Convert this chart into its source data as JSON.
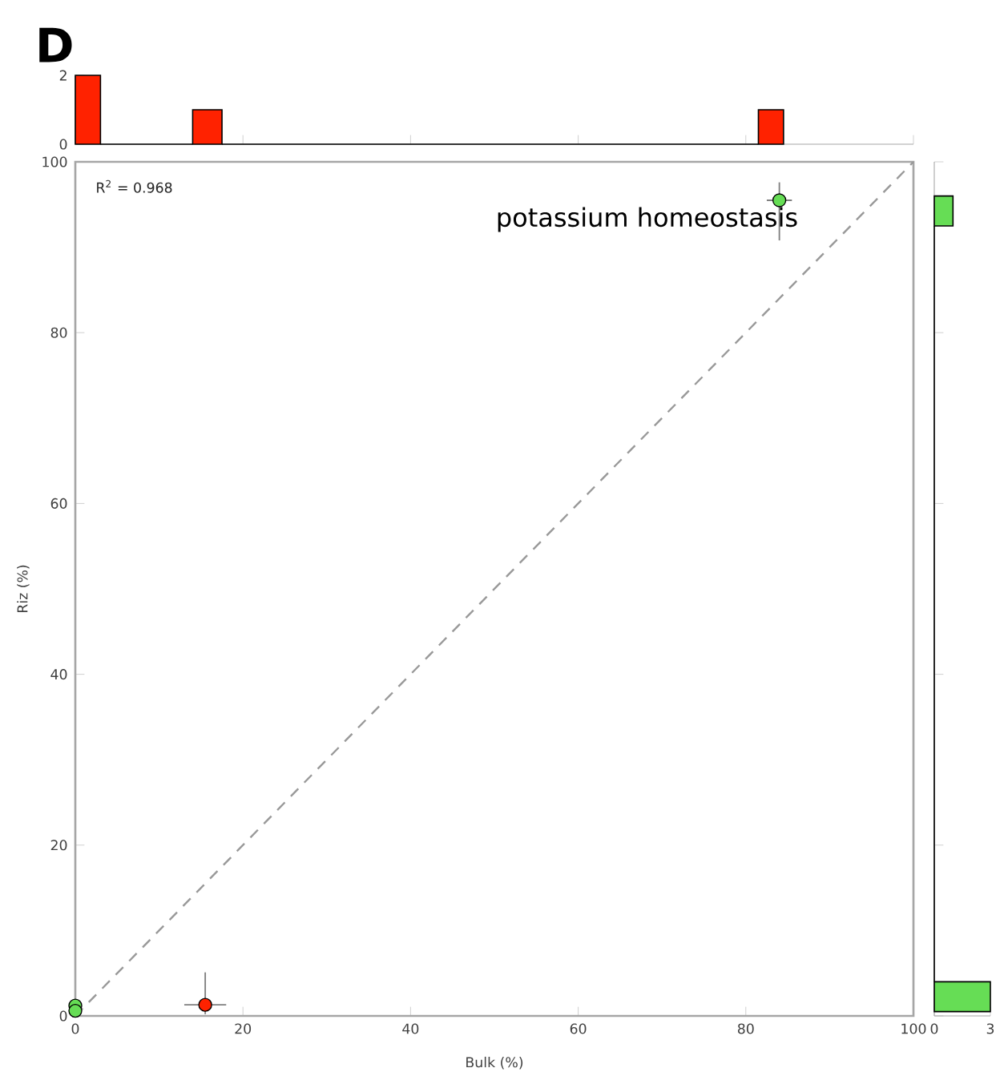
{
  "chart_data": [
    {
      "type": "histogram",
      "title": "D",
      "bins": [
        0,
        3,
        14,
        17.5,
        81.5,
        84.5
      ],
      "values": [
        2,
        0,
        1,
        0,
        1
      ],
      "color": "#ff2200",
      "xlim": [
        0,
        100
      ],
      "ylim": [
        0,
        2
      ],
      "xticks": [
        0,
        20,
        40,
        60,
        80,
        100
      ],
      "yticks": [
        0,
        2
      ],
      "tick_labels": "y"
    },
    {
      "type": "scatter",
      "xlabel": "Bulk (%)",
      "ylabel": "Riz (%)",
      "xlim": [
        0,
        100
      ],
      "ylim": [
        0,
        100
      ],
      "xticks": [
        0,
        20,
        40,
        60,
        80,
        100
      ],
      "yticks": [
        0,
        20,
        40,
        60,
        80,
        100
      ],
      "series": [
        {
          "type": "line",
          "color": "#999999",
          "line_style": "dashed",
          "marker": "none",
          "x": [
            0,
            100
          ],
          "values": [
            0,
            100
          ]
        },
        {
          "color": "#66dd55",
          "marker": "circle",
          "x": [
            0,
            0,
            84
          ],
          "values": [
            1.2,
            0.6,
            95.5
          ],
          "errors": [
            null,
            null,
            [
              90.8,
              97.6
            ]
          ],
          "xerrors": [
            null,
            null,
            [
              82.5,
              85.5
            ]
          ]
        },
        {
          "color": "#ff2200",
          "marker": "circle",
          "x": [
            15.5
          ],
          "values": [
            1.3
          ],
          "errors": [
            [
              0.2,
              5.1
            ]
          ],
          "xerrors": [
            [
              13,
              18
            ]
          ]
        }
      ],
      "annotations": [
        "R$^{2}$ = 0.968",
        {
          "text": "potassium homeostasis",
          "x": 84,
          "y": 95.5
        }
      ]
    },
    {
      "type": "histogram",
      "orientation": "horizontal",
      "bins": [
        0.5,
        4,
        92.5,
        96
      ],
      "values": [
        3,
        0,
        1
      ],
      "color": "#66dd55",
      "xlim": [
        0,
        3
      ],
      "ylim": [
        0,
        100
      ],
      "xticks": [
        0,
        3
      ],
      "yticks": [
        0,
        20,
        40,
        60,
        80,
        100
      ],
      "tick_labels": "x"
    }
  ]
}
